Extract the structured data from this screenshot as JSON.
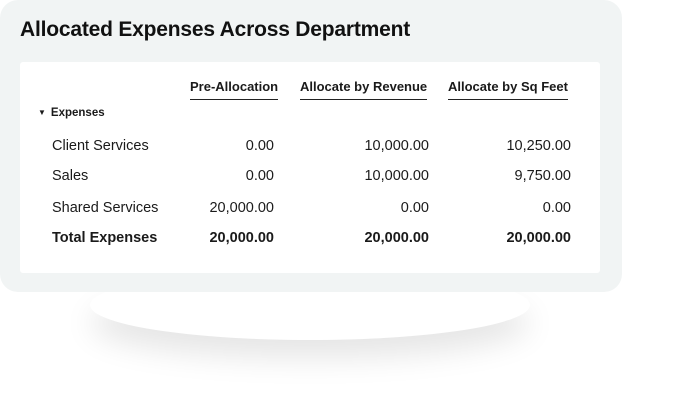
{
  "title": "Allocated Expenses Across Department",
  "columns": [
    "Pre-Allocation",
    "Allocate by Revenue",
    "Allocate by Sq Feet"
  ],
  "section": {
    "label": "Expenses",
    "expanded": true,
    "icon": "caret-down-icon"
  },
  "rows": [
    {
      "label": "Client Services",
      "values": [
        "0.00",
        "10,000.00",
        "10,250.00"
      ]
    },
    {
      "label": "Sales",
      "values": [
        "0.00",
        "10,000.00",
        "9,750.00"
      ]
    },
    {
      "label": "Shared Services",
      "values": [
        "20,000.00",
        "0.00",
        "0.00"
      ]
    }
  ],
  "total": {
    "label": "Total Expenses",
    "values": [
      "20,000.00",
      "20,000.00",
      "20,000.00"
    ]
  }
}
